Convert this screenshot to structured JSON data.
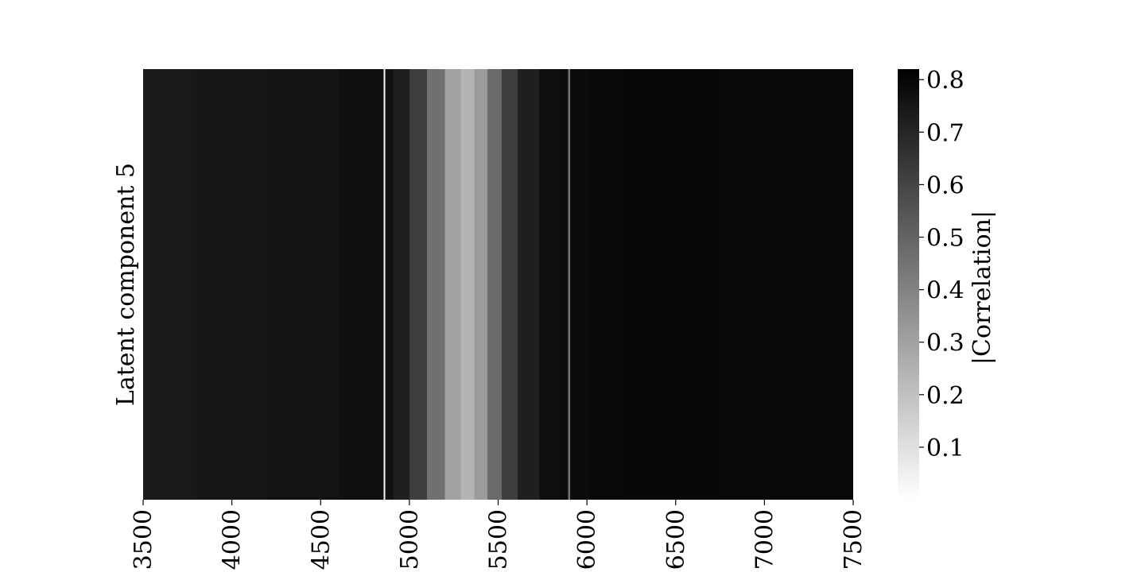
{
  "chart_data": {
    "type": "heatmap",
    "title": "",
    "xlabel": "",
    "ylabel": "Latent component 5",
    "rows": [
      "Latent component 5"
    ],
    "x_range": [
      3500,
      7500
    ],
    "x_ticks": [
      3500,
      4000,
      4500,
      5000,
      5500,
      6000,
      6500,
      7000,
      7500
    ],
    "x_tick_labels": [
      "3500",
      "4000",
      "4500",
      "5000",
      "5500",
      "6000",
      "6500",
      "7000",
      "7500"
    ],
    "colormap": "greys",
    "colorbar": {
      "label": "|Correlation|",
      "range": [
        0.0,
        0.82
      ],
      "ticks": [
        0.1,
        0.2,
        0.3,
        0.4,
        0.5,
        0.6,
        0.7,
        0.8
      ],
      "tick_labels": [
        "0.1",
        "0.2",
        "0.3",
        "0.4",
        "0.5",
        "0.6",
        "0.7",
        "0.8"
      ]
    },
    "profile": [
      {
        "x": 3500,
        "value": 0.74
      },
      {
        "x": 3700,
        "value": 0.74
      },
      {
        "x": 3900,
        "value": 0.75
      },
      {
        "x": 4100,
        "value": 0.75
      },
      {
        "x": 4300,
        "value": 0.76
      },
      {
        "x": 4500,
        "value": 0.76
      },
      {
        "x": 4700,
        "value": 0.77
      },
      {
        "x": 4850,
        "value": 0.77
      },
      {
        "x": 4860,
        "value": 0.02
      },
      {
        "x": 4870,
        "value": 0.76
      },
      {
        "x": 4950,
        "value": 0.72
      },
      {
        "x": 5050,
        "value": 0.62
      },
      {
        "x": 5150,
        "value": 0.46
      },
      {
        "x": 5250,
        "value": 0.3
      },
      {
        "x": 5330,
        "value": 0.24
      },
      {
        "x": 5400,
        "value": 0.32
      },
      {
        "x": 5480,
        "value": 0.48
      },
      {
        "x": 5560,
        "value": 0.62
      },
      {
        "x": 5660,
        "value": 0.72
      },
      {
        "x": 5800,
        "value": 0.77
      },
      {
        "x": 5890,
        "value": 0.78
      },
      {
        "x": 5900,
        "value": 0.45
      },
      {
        "x": 5910,
        "value": 0.78
      },
      {
        "x": 6100,
        "value": 0.79
      },
      {
        "x": 6300,
        "value": 0.8
      },
      {
        "x": 6600,
        "value": 0.8
      },
      {
        "x": 6900,
        "value": 0.79
      },
      {
        "x": 7200,
        "value": 0.79
      },
      {
        "x": 7500,
        "value": 0.79
      }
    ]
  }
}
